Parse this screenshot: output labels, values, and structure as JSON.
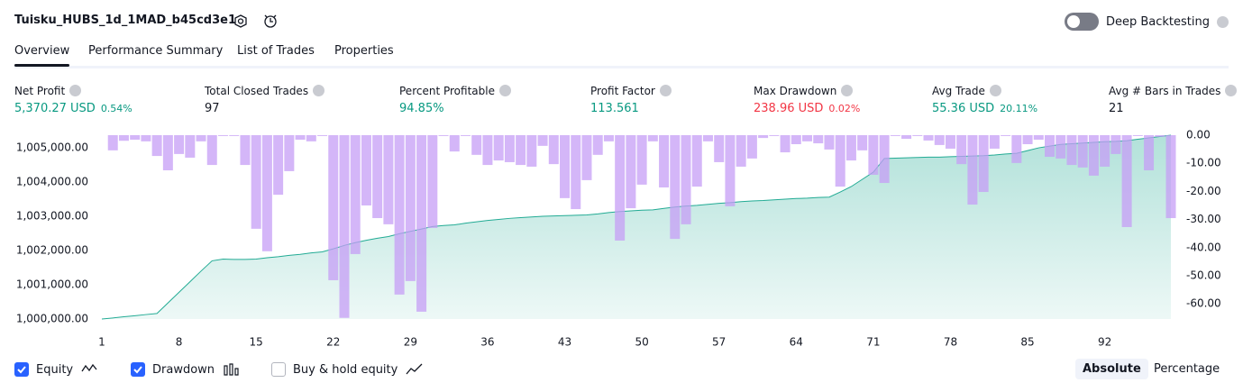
{
  "header": {
    "title": "Tuisku_HUBS_1d_1MAD_b45cd3e1"
  },
  "deep_backtesting": {
    "label": "Deep Backtesting",
    "enabled": false
  },
  "tabs": [
    "Overview",
    "Performance Summary",
    "List of Trades",
    "Properties"
  ],
  "active_tab": 0,
  "metrics": [
    {
      "label": "Net Profit",
      "value": "5,370.27 USD",
      "sub": "0.54%",
      "tone": "positive"
    },
    {
      "label": "Total Closed Trades",
      "value": "97",
      "tone": "neutral"
    },
    {
      "label": "Percent Profitable",
      "value": "94.85%",
      "tone": "positive"
    },
    {
      "label": "Profit Factor",
      "value": "113.561",
      "tone": "positive"
    },
    {
      "label": "Max Drawdown",
      "value": "238.96 USD",
      "sub": "0.02%",
      "tone": "negative"
    },
    {
      "label": "Avg Trade",
      "value": "55.36 USD",
      "sub": "20.11%",
      "tone": "positive"
    },
    {
      "label": "Avg # Bars in Trades",
      "value": "21",
      "tone": "neutral"
    }
  ],
  "chart_data": {
    "type": "line",
    "x": [
      1,
      2,
      3,
      4,
      5,
      6,
      7,
      8,
      9,
      10,
      11,
      12,
      13,
      14,
      15,
      16,
      17,
      18,
      19,
      20,
      21,
      22,
      23,
      24,
      25,
      26,
      27,
      28,
      29,
      30,
      31,
      32,
      33,
      34,
      35,
      36,
      37,
      38,
      39,
      40,
      41,
      42,
      43,
      44,
      45,
      46,
      47,
      48,
      49,
      50,
      51,
      52,
      53,
      54,
      55,
      56,
      57,
      58,
      59,
      60,
      61,
      62,
      63,
      64,
      65,
      66,
      67,
      68,
      69,
      70,
      71,
      72,
      73,
      74,
      75,
      76,
      77,
      78,
      79,
      80,
      81,
      82,
      83,
      84,
      85,
      86,
      87,
      88,
      89,
      90,
      91,
      92,
      93,
      94,
      95,
      96,
      97,
      98
    ],
    "xlim": [
      1,
      98
    ],
    "xticks": [
      1,
      8,
      15,
      22,
      29,
      36,
      43,
      50,
      57,
      64,
      71,
      78,
      85,
      92
    ],
    "ylim": [
      1000000,
      1005370
    ],
    "yticks": [
      {
        "value": 1000000,
        "label": "1,000,000.00"
      },
      {
        "value": 1001000,
        "label": "1,001,000.00"
      },
      {
        "value": 1002000,
        "label": "1,002,000.00"
      },
      {
        "value": 1003000,
        "label": "1,003,000.00"
      },
      {
        "value": 1004000,
        "label": "1,004,000.00"
      },
      {
        "value": 1005000,
        "label": "1,005,000.00"
      }
    ],
    "y2lim": [
      -65.4,
      0
    ],
    "y2ticks": [
      {
        "value": 0,
        "label": "0.00"
      },
      {
        "value": -10,
        "label": "-10.00"
      },
      {
        "value": -20,
        "label": "-20.00"
      },
      {
        "value": -30,
        "label": "-30.00"
      },
      {
        "value": -40,
        "label": "-40.00"
      },
      {
        "value": -50,
        "label": "-50.00"
      },
      {
        "value": -60,
        "label": "-60.00"
      }
    ],
    "series": [
      {
        "name": "Equity",
        "color": "#22ab94",
        "visible": true,
        "values": [
          1000000,
          1000030,
          1000065,
          1000095,
          1000130,
          1000160,
          1000470,
          1000780,
          1001090,
          1001400,
          1001700,
          1001750,
          1001740,
          1001740,
          1001750,
          1001790,
          1001820,
          1001860,
          1001890,
          1001930,
          1001960,
          1002050,
          1002150,
          1002230,
          1002300,
          1002360,
          1002410,
          1002490,
          1002560,
          1002630,
          1002700,
          1002730,
          1002750,
          1002800,
          1002840,
          1002880,
          1002910,
          1002940,
          1002960,
          1002980,
          1003000,
          1003010,
          1003020,
          1003030,
          1003040,
          1003070,
          1003110,
          1003140,
          1003160,
          1003180,
          1003190,
          1003230,
          1003270,
          1003300,
          1003320,
          1003350,
          1003380,
          1003400,
          1003430,
          1003450,
          1003460,
          1003480,
          1003500,
          1003520,
          1003530,
          1003550,
          1003560,
          1003710,
          1003870,
          1004080,
          1004290,
          1004690,
          1004700,
          1004710,
          1004720,
          1004730,
          1004730,
          1004740,
          1004750,
          1004760,
          1004770,
          1004790,
          1004820,
          1004840,
          1004920,
          1005000,
          1005050,
          1005100,
          1005120,
          1005140,
          1005160,
          1005180,
          1005190,
          1005210,
          1005250,
          1005290,
          1005330,
          1005370
        ]
      },
      {
        "name": "Drawdown",
        "color": "#c69ef5",
        "axis": "y2",
        "type": "bar",
        "visible": true,
        "values": [
          null,
          -5.4,
          -2,
          -1.6,
          -2.2,
          -7.4,
          -12.5,
          -6.7,
          -8,
          -2.2,
          -10.6,
          -0.3,
          -0.3,
          -10.6,
          -33.3,
          -41.3,
          -21.2,
          -12.8,
          -1.6,
          -2.2,
          -0.3,
          -51.6,
          -65,
          -42.3,
          -25,
          -29.5,
          -31.7,
          -56.7,
          -51.9,
          -62.8,
          -33,
          -0.3,
          -5.8,
          -0.3,
          -7,
          -10.6,
          -9,
          -9.6,
          -10.6,
          -11.2,
          -3.8,
          -10.3,
          -22.4,
          -26.3,
          -16,
          -7,
          -2.2,
          -37.5,
          -26,
          -17.6,
          -2.2,
          -18.6,
          -36.9,
          -31.7,
          -18.3,
          -2.2,
          -9.6,
          -25.3,
          -11.2,
          -8.3,
          -1,
          -0.3,
          -6.1,
          -3.2,
          -2.2,
          -2.9,
          -5.1,
          -18.3,
          -9,
          -5.4,
          -14.1,
          -17,
          -0.3,
          -1.3,
          -0.3,
          -1.9,
          -3.5,
          -4.8,
          -10.3,
          -24.7,
          -20.2,
          -4.8,
          -0.3,
          -9.9,
          -3.2,
          -1.6,
          -7.7,
          -8.3,
          -10.6,
          -11.5,
          -14.4,
          -11.2,
          -6.7,
          -32.7,
          -0.3,
          -12.5,
          -0.6,
          -29.5
        ]
      }
    ],
    "buy_and_hold": {
      "label": "Buy & hold equity",
      "checked": false
    }
  },
  "scale_modes": [
    "Absolute",
    "Percentage"
  ],
  "active_scale_mode": 0
}
